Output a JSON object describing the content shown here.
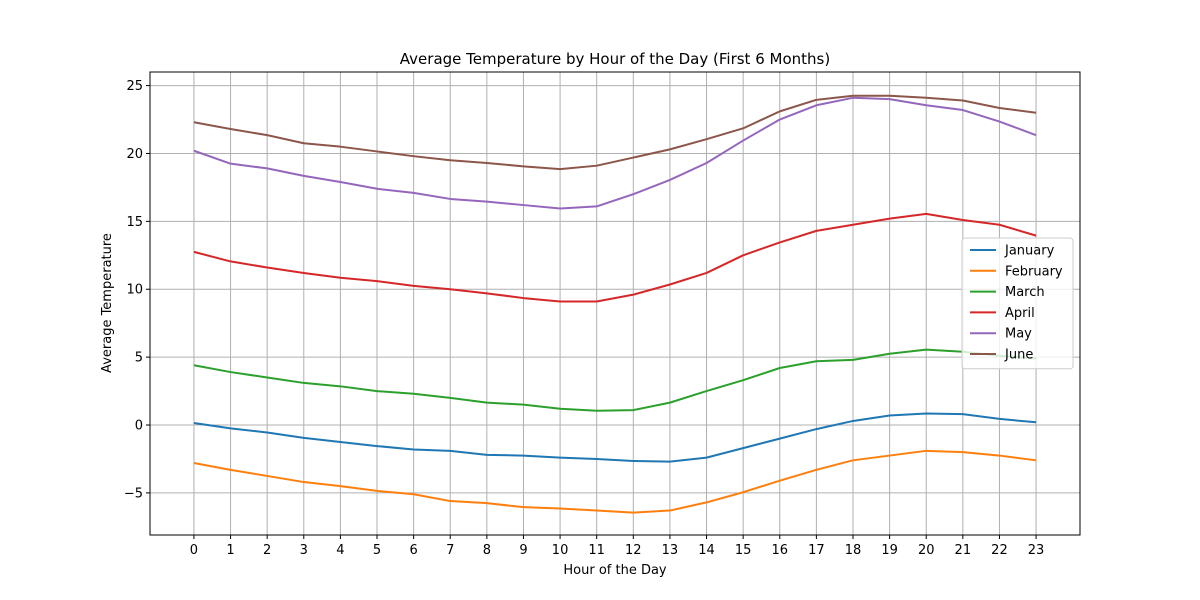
{
  "chart_data": {
    "type": "line",
    "title": "Average Temperature by Hour of the Day (First 6 Months)",
    "xlabel": "Hour of the Day",
    "ylabel": "Average Temperature",
    "x": [
      0,
      1,
      2,
      3,
      4,
      5,
      6,
      7,
      8,
      9,
      10,
      11,
      12,
      13,
      14,
      15,
      16,
      17,
      18,
      19,
      20,
      21,
      22,
      23
    ],
    "xlim": [
      -1.2,
      24.2
    ],
    "ylim": [
      -8.1,
      26
    ],
    "yticks": [
      -5,
      0,
      5,
      10,
      15,
      20,
      25
    ],
    "ytick_labels": [
      "−5",
      "0",
      "5",
      "10",
      "15",
      "20",
      "25"
    ],
    "grid": true,
    "legend_position": "center-right",
    "series": [
      {
        "name": "January",
        "color": "#1f77b4",
        "values": [
          0.15,
          -0.25,
          -0.55,
          -0.95,
          -1.25,
          -1.55,
          -1.8,
          -1.9,
          -2.2,
          -2.25,
          -2.4,
          -2.5,
          -2.65,
          -2.7,
          -2.4,
          -1.7,
          -1.0,
          -0.3,
          0.3,
          0.7,
          0.85,
          0.8,
          0.45,
          0.2
        ]
      },
      {
        "name": "February",
        "color": "#ff7f0e",
        "values": [
          -2.8,
          -3.3,
          -3.75,
          -4.2,
          -4.5,
          -4.85,
          -5.1,
          -5.6,
          -5.75,
          -6.05,
          -6.15,
          -6.3,
          -6.45,
          -6.3,
          -5.7,
          -4.95,
          -4.1,
          -3.3,
          -2.6,
          -2.25,
          -1.9,
          -2.0,
          -2.25,
          -2.6
        ]
      },
      {
        "name": "March",
        "color": "#2ca02c",
        "values": [
          4.4,
          3.9,
          3.5,
          3.1,
          2.85,
          2.5,
          2.3,
          2.0,
          1.65,
          1.5,
          1.2,
          1.05,
          1.1,
          1.65,
          2.5,
          3.3,
          4.2,
          4.7,
          4.8,
          5.25,
          5.55,
          5.4,
          5.1,
          4.9
        ]
      },
      {
        "name": "April",
        "color": "#d62728",
        "values": [
          12.75,
          12.05,
          11.6,
          11.2,
          10.85,
          10.6,
          10.25,
          10.0,
          9.7,
          9.35,
          9.1,
          9.1,
          9.6,
          10.35,
          11.2,
          12.5,
          13.45,
          14.3,
          14.75,
          15.2,
          15.55,
          15.1,
          14.75,
          13.95
        ]
      },
      {
        "name": "May",
        "color": "#9467bd",
        "values": [
          20.2,
          19.25,
          18.9,
          18.35,
          17.9,
          17.4,
          17.1,
          16.65,
          16.45,
          16.2,
          15.95,
          16.1,
          17.0,
          18.05,
          19.3,
          20.95,
          22.5,
          23.55,
          24.1,
          24.0,
          23.55,
          23.2,
          22.35,
          21.35
        ]
      },
      {
        "name": "June",
        "color": "#8c564b",
        "values": [
          22.3,
          21.8,
          21.35,
          20.75,
          20.5,
          20.15,
          19.8,
          19.5,
          19.3,
          19.05,
          18.85,
          19.1,
          19.7,
          20.3,
          21.05,
          21.85,
          23.1,
          23.95,
          24.25,
          24.25,
          24.1,
          23.9,
          23.35,
          23.0
        ]
      }
    ]
  }
}
